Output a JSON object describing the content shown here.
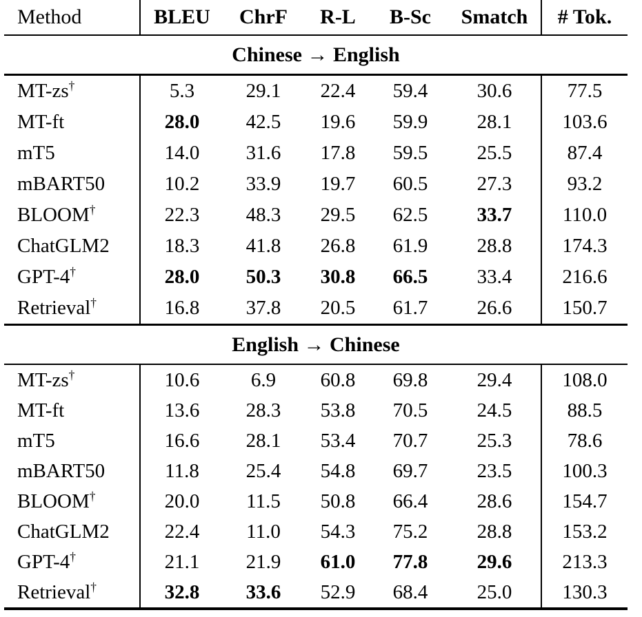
{
  "table": {
    "columns": [
      "Method",
      "BLEU",
      "ChrF",
      "R-L",
      "B-Sc",
      "Smatch",
      "# Tok."
    ],
    "dagger_symbol": "†",
    "colors": {
      "text": "#000000",
      "background": "#ffffff",
      "rule": "#000000"
    },
    "sections": [
      {
        "title": "Chinese → English",
        "rows": [
          {
            "method": "MT-zs",
            "dagger": true,
            "values": [
              "5.3",
              "29.1",
              "22.4",
              "59.4",
              "30.6",
              "77.5"
            ],
            "bold": []
          },
          {
            "method": "MT-ft",
            "dagger": false,
            "values": [
              "28.0",
              "42.5",
              "19.6",
              "59.9",
              "28.1",
              "103.6"
            ],
            "bold": [
              0
            ]
          },
          {
            "method": "mT5",
            "dagger": false,
            "values": [
              "14.0",
              "31.6",
              "17.8",
              "59.5",
              "25.5",
              "87.4"
            ],
            "bold": []
          },
          {
            "method": "mBART50",
            "dagger": false,
            "values": [
              "10.2",
              "33.9",
              "19.7",
              "60.5",
              "27.3",
              "93.2"
            ],
            "bold": []
          },
          {
            "method": "BLOOM",
            "dagger": true,
            "values": [
              "22.3",
              "48.3",
              "29.5",
              "62.5",
              "33.7",
              "110.0"
            ],
            "bold": [
              4
            ]
          },
          {
            "method": "ChatGLM2",
            "dagger": false,
            "values": [
              "18.3",
              "41.8",
              "26.8",
              "61.9",
              "28.8",
              "174.3"
            ],
            "bold": []
          },
          {
            "method": "GPT-4",
            "dagger": true,
            "values": [
              "28.0",
              "50.3",
              "30.8",
              "66.5",
              "33.4",
              "216.6"
            ],
            "bold": [
              0,
              1,
              2,
              3
            ]
          },
          {
            "method": "Retrieval",
            "dagger": true,
            "values": [
              "16.8",
              "37.8",
              "20.5",
              "61.7",
              "26.6",
              "150.7"
            ],
            "bold": []
          }
        ]
      },
      {
        "title": "English → Chinese",
        "rows": [
          {
            "method": "MT-zs",
            "dagger": true,
            "values": [
              "10.6",
              "6.9",
              "60.8",
              "69.8",
              "29.4",
              "108.0"
            ],
            "bold": []
          },
          {
            "method": "MT-ft",
            "dagger": false,
            "values": [
              "13.6",
              "28.3",
              "53.8",
              "70.5",
              "24.5",
              "88.5"
            ],
            "bold": []
          },
          {
            "method": "mT5",
            "dagger": false,
            "values": [
              "16.6",
              "28.1",
              "53.4",
              "70.7",
              "25.3",
              "78.6"
            ],
            "bold": []
          },
          {
            "method": "mBART50",
            "dagger": false,
            "values": [
              "11.8",
              "25.4",
              "54.8",
              "69.7",
              "23.5",
              "100.3"
            ],
            "bold": []
          },
          {
            "method": "BLOOM",
            "dagger": true,
            "values": [
              "20.0",
              "11.5",
              "50.8",
              "66.4",
              "28.6",
              "154.7"
            ],
            "bold": []
          },
          {
            "method": "ChatGLM2",
            "dagger": false,
            "values": [
              "22.4",
              "11.0",
              "54.3",
              "75.2",
              "28.8",
              "153.2"
            ],
            "bold": []
          },
          {
            "method": "GPT-4",
            "dagger": true,
            "values": [
              "21.1",
              "21.9",
              "61.0",
              "77.8",
              "29.6",
              "213.3"
            ],
            "bold": [
              2,
              3,
              4
            ]
          },
          {
            "method": "Retrieval",
            "dagger": true,
            "values": [
              "32.8",
              "33.6",
              "52.9",
              "68.4",
              "25.0",
              "130.3"
            ],
            "bold": [
              0,
              1
            ]
          }
        ]
      }
    ]
  }
}
